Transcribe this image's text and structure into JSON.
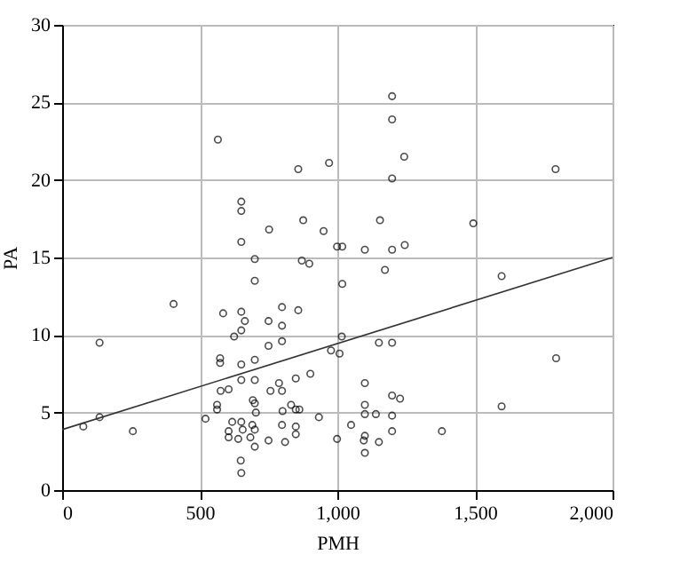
{
  "chart_data": {
    "type": "scatter",
    "xlabel": "PMH",
    "ylabel": "PA",
    "xlim": [
      0,
      2000
    ],
    "ylim": [
      0,
      30
    ],
    "xticks": [
      0,
      500,
      {
        "value": 1000,
        "label": "1,000"
      },
      {
        "value": 1500,
        "label": "1,500"
      },
      {
        "value": 2000,
        "label": "2,000"
      }
    ],
    "yticks": [
      0,
      5,
      10,
      15,
      20,
      25,
      30
    ],
    "grid": true,
    "marker": "circle",
    "series": [
      {
        "color": "#000000",
        "x": [
          566,
          858,
          970,
          651,
          651,
          752,
          876,
          950,
          651,
          999,
          1199,
          1199,
          1243,
          1199,
          1793,
          1155,
          1494,
          1018,
          1100,
          1199,
          1245,
          700,
          871,
          898,
          700,
          1018,
          405,
          585,
          651,
          799,
          858,
          664,
          750,
          651,
          799,
          625,
          799,
          750,
          136,
          1016,
          574,
          574,
          651,
          700,
          977,
          1008,
          651,
          700,
          902,
          849,
          788,
          576,
          605,
          757,
          799,
          693,
          700,
          563,
          563,
          832,
          849,
          862,
          704,
          801,
          933,
          521,
          257,
          136,
          77,
          618,
          651,
          691,
          605,
          656,
          700,
          799,
          849,
          605,
          640,
          684,
          700,
          750,
          810,
          849,
          999,
          649,
          651,
          1173,
          1597,
          1151,
          1199,
          1795,
          1100,
          1199,
          1228,
          1100,
          1597,
          1100,
          1140,
          1199,
          1050,
          1100,
          1096,
          1151,
          1199,
          1380,
          1100
        ],
        "values": [
          22.6,
          20.7,
          21.1,
          18.6,
          18.0,
          16.8,
          17.4,
          16.7,
          16.0,
          15.7,
          25.4,
          23.9,
          21.5,
          20.1,
          20.7,
          17.4,
          17.2,
          15.7,
          15.5,
          15.5,
          15.8,
          14.9,
          14.8,
          14.6,
          13.5,
          13.3,
          12.0,
          11.4,
          11.5,
          11.8,
          11.6,
          10.9,
          10.9,
          10.3,
          10.6,
          9.9,
          9.6,
          9.3,
          9.5,
          9.9,
          8.5,
          8.2,
          8.1,
          8.4,
          9.0,
          8.8,
          7.1,
          7.1,
          7.5,
          7.2,
          6.9,
          6.4,
          6.5,
          6.4,
          6.4,
          5.8,
          5.6,
          5.5,
          5.2,
          5.5,
          5.2,
          5.2,
          5.0,
          5.1,
          4.7,
          4.6,
          3.8,
          4.7,
          4.1,
          4.4,
          4.4,
          4.2,
          3.8,
          3.9,
          3.9,
          4.2,
          4.1,
          3.4,
          3.3,
          3.4,
          2.8,
          3.2,
          3.1,
          3.6,
          3.3,
          1.9,
          1.1,
          14.2,
          13.8,
          9.5,
          9.5,
          8.5,
          6.9,
          6.1,
          5.9,
          5.5,
          5.4,
          4.9,
          4.9,
          4.8,
          4.2,
          3.5,
          3.2,
          3.1,
          3.8,
          3.8,
          2.4
        ]
      },
      {
        "type": "line",
        "color": "#333333",
        "marker": "none",
        "line_style": "solid",
        "x": [
          0,
          2000
        ],
        "values": [
          3.9,
          15.0
        ]
      }
    ]
  }
}
